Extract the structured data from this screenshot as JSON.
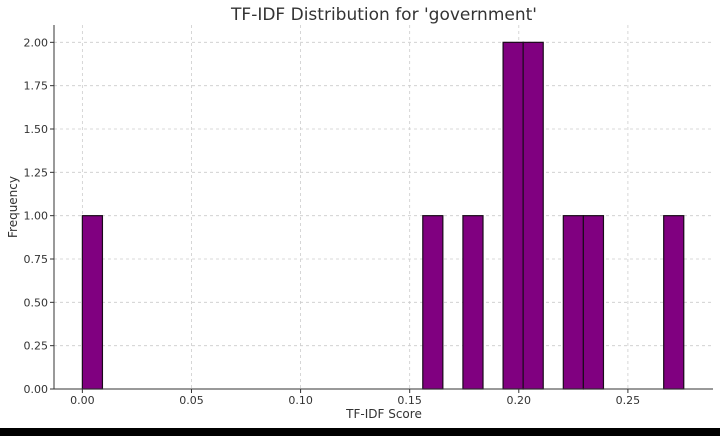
{
  "chart_data": {
    "type": "bar",
    "title": "TF-IDF Distribution for 'government'",
    "xlabel": "TF-IDF Score",
    "ylabel": "Frequency",
    "xlim": [
      -0.013,
      0.289
    ],
    "ylim": [
      0,
      2.1
    ],
    "xticks": [
      0.0,
      0.05,
      0.1,
      0.15,
      0.2,
      0.25
    ],
    "xtick_labels": [
      "0.00",
      "0.05",
      "0.10",
      "0.15",
      "0.20",
      "0.25"
    ],
    "yticks": [
      0,
      0.25,
      0.5,
      0.75,
      1.0,
      1.25,
      1.5,
      1.75,
      2.0
    ],
    "ytick_labels": [
      "0.00",
      "0.25",
      "0.50",
      "0.75",
      "1.00",
      "1.25",
      "1.50",
      "1.75",
      "2.00"
    ],
    "grid": true,
    "bin_width": 0.0092,
    "bars": [
      {
        "x": 0.0,
        "value": 1
      },
      {
        "x": 0.156,
        "value": 1
      },
      {
        "x": 0.1744,
        "value": 1
      },
      {
        "x": 0.1928,
        "value": 2
      },
      {
        "x": 0.202,
        "value": 2
      },
      {
        "x": 0.2204,
        "value": 1
      },
      {
        "x": 0.2296,
        "value": 1
      },
      {
        "x": 0.2664,
        "value": 1
      }
    ],
    "colors": {
      "bar_fill": "#800080",
      "bar_edge": "#1a0a1a",
      "grid": "#cccccc",
      "axis": "#333333",
      "text": "#333333"
    }
  }
}
